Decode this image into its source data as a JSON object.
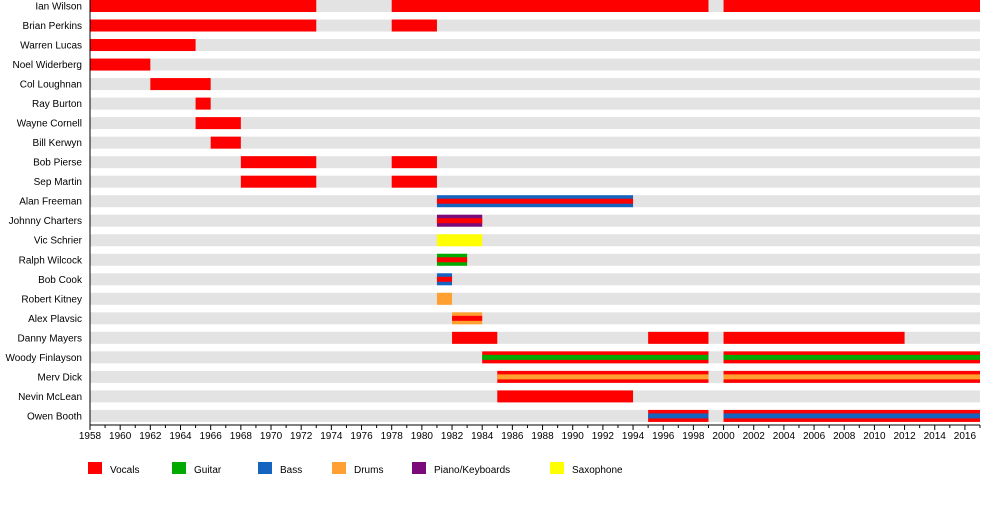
{
  "chart_data": {
    "type": "timeline",
    "xlim": [
      1958,
      2017
    ],
    "x_ticks": [
      1958,
      1960,
      1962,
      1964,
      1966,
      1968,
      1970,
      1972,
      1974,
      1976,
      1978,
      1980,
      1982,
      1984,
      1986,
      1988,
      1990,
      1992,
      1994,
      1996,
      1998,
      2000,
      2002,
      2004,
      2006,
      2008,
      2010,
      2012,
      2014,
      2016
    ],
    "legend_position": "bottom",
    "roles": [
      {
        "name": "Vocals",
        "color": "#ff0000"
      },
      {
        "name": "Guitar",
        "color": "#00aa00"
      },
      {
        "name": "Bass",
        "color": "#1565c0"
      },
      {
        "name": "Drums",
        "color": "#ffa030"
      },
      {
        "name": "Piano/Keyboards",
        "color": "#7b0a7b"
      },
      {
        "name": "Saxophone",
        "color": "#ffff00"
      }
    ],
    "members": [
      {
        "name": "Ian Wilson",
        "periods": [
          [
            1958,
            1973,
            [
              "Vocals"
            ]
          ],
          [
            1978,
            1999,
            [
              "Vocals"
            ]
          ],
          [
            2000,
            2017,
            [
              "Vocals"
            ]
          ]
        ]
      },
      {
        "name": "Brian Perkins",
        "periods": [
          [
            1958,
            1973,
            [
              "Vocals"
            ]
          ],
          [
            1978,
            1981,
            [
              "Vocals"
            ]
          ]
        ]
      },
      {
        "name": "Warren Lucas",
        "periods": [
          [
            1958,
            1965,
            [
              "Vocals"
            ]
          ]
        ]
      },
      {
        "name": "Noel Widerberg",
        "periods": [
          [
            1958,
            1962,
            [
              "Vocals"
            ]
          ]
        ]
      },
      {
        "name": "Col Loughnan",
        "periods": [
          [
            1962,
            1966,
            [
              "Vocals"
            ]
          ]
        ]
      },
      {
        "name": "Ray Burton",
        "periods": [
          [
            1965,
            1966,
            [
              "Vocals"
            ]
          ]
        ]
      },
      {
        "name": "Wayne Cornell",
        "periods": [
          [
            1965,
            1968,
            [
              "Vocals"
            ]
          ]
        ]
      },
      {
        "name": "Bill Kerwyn",
        "periods": [
          [
            1966,
            1968,
            [
              "Vocals"
            ]
          ]
        ]
      },
      {
        "name": "Bob Pierse",
        "periods": [
          [
            1968,
            1973,
            [
              "Vocals"
            ]
          ],
          [
            1978,
            1981,
            [
              "Vocals"
            ]
          ]
        ]
      },
      {
        "name": "Sep Martin",
        "periods": [
          [
            1968,
            1973,
            [
              "Vocals"
            ]
          ],
          [
            1978,
            1981,
            [
              "Vocals"
            ]
          ]
        ]
      },
      {
        "name": "Alan Freeman",
        "periods": [
          [
            1981,
            1994,
            [
              "Bass",
              "Vocals"
            ]
          ]
        ]
      },
      {
        "name": "Johnny Charters",
        "periods": [
          [
            1981,
            1984,
            [
              "Piano/Keyboards",
              "Vocals"
            ]
          ]
        ]
      },
      {
        "name": "Vic Schrier",
        "periods": [
          [
            1981,
            1984,
            [
              "Saxophone"
            ]
          ]
        ]
      },
      {
        "name": "Ralph Wilcock",
        "periods": [
          [
            1981,
            1983,
            [
              "Guitar",
              "Vocals"
            ]
          ]
        ]
      },
      {
        "name": "Bob Cook",
        "periods": [
          [
            1981,
            1982,
            [
              "Bass",
              "Vocals"
            ]
          ]
        ]
      },
      {
        "name": "Robert Kitney",
        "periods": [
          [
            1981,
            1982,
            [
              "Drums"
            ]
          ]
        ]
      },
      {
        "name": "Alex Plavsic",
        "periods": [
          [
            1982,
            1984,
            [
              "Drums",
              "Vocals"
            ]
          ]
        ]
      },
      {
        "name": "Danny Mayers",
        "periods": [
          [
            1982,
            1985,
            [
              "Vocals"
            ]
          ],
          [
            1995,
            1999,
            [
              "Vocals"
            ]
          ],
          [
            2000,
            2012,
            [
              "Vocals"
            ]
          ]
        ]
      },
      {
        "name": "Woody Finlayson",
        "periods": [
          [
            1984,
            1999,
            [
              "Vocals",
              "Guitar"
            ]
          ],
          [
            2000,
            2017,
            [
              "Vocals",
              "Guitar"
            ]
          ]
        ]
      },
      {
        "name": "Merv Dick",
        "periods": [
          [
            1985,
            1999,
            [
              "Vocals",
              "Drums"
            ]
          ],
          [
            2000,
            2017,
            [
              "Vocals",
              "Drums"
            ]
          ]
        ]
      },
      {
        "name": "Nevin McLean",
        "periods": [
          [
            1985,
            1994,
            [
              "Vocals"
            ]
          ]
        ]
      },
      {
        "name": "Owen Booth",
        "periods": [
          [
            1995,
            1999,
            [
              "Vocals",
              "Bass"
            ]
          ],
          [
            2000,
            2017,
            [
              "Vocals",
              "Bass"
            ]
          ]
        ]
      }
    ]
  }
}
